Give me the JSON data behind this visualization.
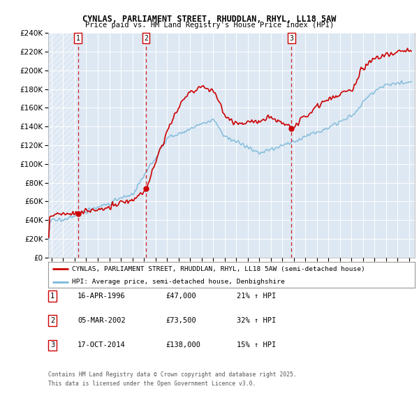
{
  "title1": "CYNLAS, PARLIAMENT STREET, RHUDDLAN, RHYL, LL18 5AW",
  "title2": "Price paid vs. HM Land Registry's House Price Index (HPI)",
  "legend_label_red": "CYNLAS, PARLIAMENT STREET, RHUDDLAN, RHYL, LL18 5AW (semi-detached house)",
  "legend_label_blue": "HPI: Average price, semi-detached house, Denbighshire",
  "red_color": "#cc0000",
  "blue_color": "#7ab8d9",
  "annotation_color": "#cc0000",
  "background_plot": "#dde8f3",
  "hatch_color": "#c8d8ec",
  "grid_color": "#ffffff",
  "sale1_date": 1996.29,
  "sale1_price": 47000,
  "sale1_label": "1",
  "sale2_date": 2002.18,
  "sale2_price": 73500,
  "sale2_label": "2",
  "sale3_date": 2014.79,
  "sale3_price": 138000,
  "sale3_label": "3",
  "footer": "Contains HM Land Registry data © Crown copyright and database right 2025.\nThis data is licensed under the Open Government Licence v3.0.",
  "table_rows": [
    [
      "1",
      "16-APR-1996",
      "£47,000",
      "21% ↑ HPI"
    ],
    [
      "2",
      "05-MAR-2002",
      "£73,500",
      "32% ↑ HPI"
    ],
    [
      "3",
      "17-OCT-2014",
      "£138,000",
      "15% ↑ HPI"
    ]
  ],
  "ylim": [
    0,
    240000
  ],
  "xlim_start": 1993.7,
  "xlim_end": 2025.5
}
